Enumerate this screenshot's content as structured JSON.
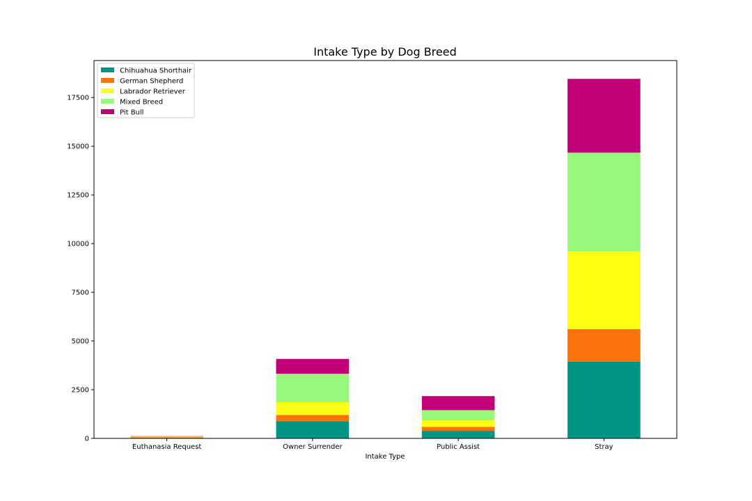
{
  "chart_data": {
    "type": "bar",
    "stacked": true,
    "title": "Intake Type by Dog Breed",
    "xlabel": "Intake Type",
    "ylabel": "",
    "ylim": [
      0,
      19400
    ],
    "yticks": [
      0,
      2500,
      5000,
      7500,
      10000,
      12500,
      15000,
      17500
    ],
    "categories": [
      "Euthanasia Request",
      "Owner Surrender",
      "Public Assist",
      "Stray"
    ],
    "series": [
      {
        "name": "Chihuahua Shorthair",
        "color": "#009485",
        "values": [
          30,
          880,
          390,
          3930
        ]
      },
      {
        "name": "German Shepherd",
        "color": "#fb730c",
        "values": [
          25,
          320,
          200,
          1680
        ]
      },
      {
        "name": "Labrador Retriever",
        "color": "#ffff14",
        "values": [
          20,
          660,
          340,
          4000
        ]
      },
      {
        "name": "Mixed Breed",
        "color": "#96f97b",
        "values": [
          25,
          1460,
          520,
          5060
        ]
      },
      {
        "name": "Pit Bull",
        "color": "#c20078",
        "values": [
          15,
          760,
          720,
          3790
        ]
      }
    ],
    "legend": {
      "position": "top-left"
    },
    "grid": false
  }
}
